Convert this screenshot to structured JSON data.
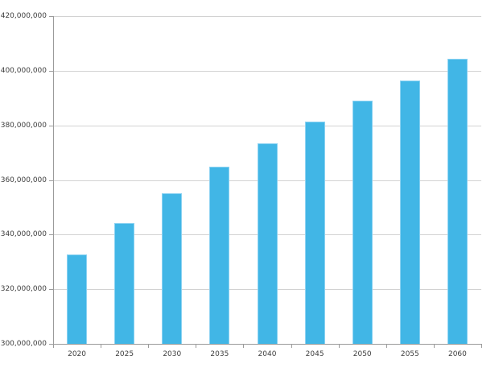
{
  "chart_data": {
    "type": "bar",
    "title": "",
    "categories": [
      "2020",
      "2025",
      "2030",
      "2035",
      "2040",
      "2045",
      "2050",
      "2055",
      "2060"
    ],
    "values": [
      332600000,
      344200000,
      355100000,
      364900000,
      373500000,
      381400000,
      388900000,
      396300000,
      404500000
    ],
    "xlabel": "",
    "ylabel": "",
    "ylim": [
      300000000,
      420000000
    ],
    "ytick_step": 20000000,
    "ytick_labels_top_to_bottom": [
      "420,000,000",
      "400,000,000",
      "380,000,000",
      "360,000,000",
      "340,000,000",
      "320,000,000",
      "300,000,000"
    ],
    "grid": "horizontal",
    "legend_position": "none",
    "colors": {
      "bar_fill": "#41B6E6",
      "bar_edge": "#8BD2F2",
      "gridline": "#D2D2D2",
      "axis": "#9B9B9B",
      "tick_label": "#3D3D3D",
      "background": "#FFFFFF"
    }
  }
}
